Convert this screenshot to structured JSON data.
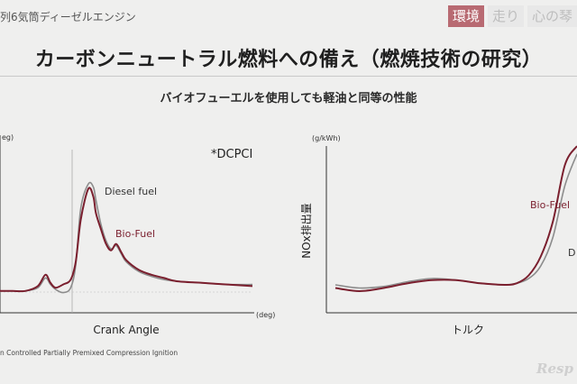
{
  "header": {
    "caption": "列6気筒ディーゼルエンジン",
    "tabs": [
      {
        "label": "環境",
        "active": true
      },
      {
        "label": "走り",
        "active": false
      },
      {
        "label": "心の琴",
        "active": false
      }
    ]
  },
  "main_title": "カーボンニュートラル燃料への備え（燃焼技術の研究）",
  "subtitle": "バイオフューエルを使用しても軽油と同等の性能",
  "footnote": "n Controlled  Partially Premixed Compression Ignition",
  "watermark": "Resp",
  "colors": {
    "diesel": "#8c8c8c",
    "bio": "#7a1f2e",
    "accent_tab": "#b86a72"
  },
  "chart_data": [
    {
      "type": "line",
      "annotation": "*DCPCI",
      "ylabel_unit": "eg)",
      "xlabel": "Crank Angle",
      "xlabel_unit": "(deg)",
      "xlim": [
        0,
        100
      ],
      "ylim": [
        0,
        100
      ],
      "grid": false,
      "series": [
        {
          "name": "Diesel fuel",
          "x": [
            0,
            5,
            10,
            15,
            18,
            20,
            22,
            25,
            28,
            30,
            32,
            35,
            37,
            38,
            40,
            42,
            44,
            46,
            48,
            50,
            55,
            60,
            65,
            70,
            80,
            90,
            100
          ],
          "y": [
            4,
            4,
            4,
            6,
            12,
            8,
            5,
            3,
            6,
            20,
            55,
            70,
            68,
            60,
            45,
            35,
            30,
            32,
            27,
            22,
            16,
            13,
            11,
            10,
            9,
            8,
            8
          ]
        },
        {
          "name": "Bio-Fuel",
          "x": [
            0,
            5,
            10,
            15,
            18,
            20,
            22,
            25,
            28,
            30,
            32,
            35,
            37,
            38,
            40,
            42,
            44,
            46,
            48,
            50,
            55,
            60,
            65,
            70,
            80,
            90,
            100
          ],
          "y": [
            4,
            4,
            4,
            7,
            14,
            9,
            6,
            8,
            11,
            22,
            48,
            67,
            62,
            52,
            42,
            33,
            29,
            33,
            28,
            23,
            17,
            14,
            12,
            10,
            9,
            8,
            7
          ]
        }
      ]
    },
    {
      "type": "line",
      "ylabel": "NOx排出量",
      "ylabel_unit": "(g/kWh)",
      "xlabel": "トルク",
      "xlim": [
        0,
        100
      ],
      "ylim": [
        0,
        100
      ],
      "grid": false,
      "series": [
        {
          "name": "D",
          "x": [
            0,
            10,
            20,
            30,
            40,
            50,
            60,
            70,
            75,
            80,
            85,
            90,
            95,
            100
          ],
          "y": [
            12,
            10,
            11,
            14,
            16,
            15,
            13,
            12,
            13,
            16,
            24,
            42,
            75,
            95
          ]
        },
        {
          "name": "Bio-Fuel",
          "x": [
            0,
            10,
            20,
            30,
            40,
            50,
            60,
            70,
            75,
            80,
            85,
            90,
            95,
            100
          ],
          "y": [
            10,
            8,
            10,
            13,
            15,
            15,
            13,
            12,
            13,
            18,
            30,
            52,
            88,
            100
          ]
        }
      ]
    }
  ]
}
